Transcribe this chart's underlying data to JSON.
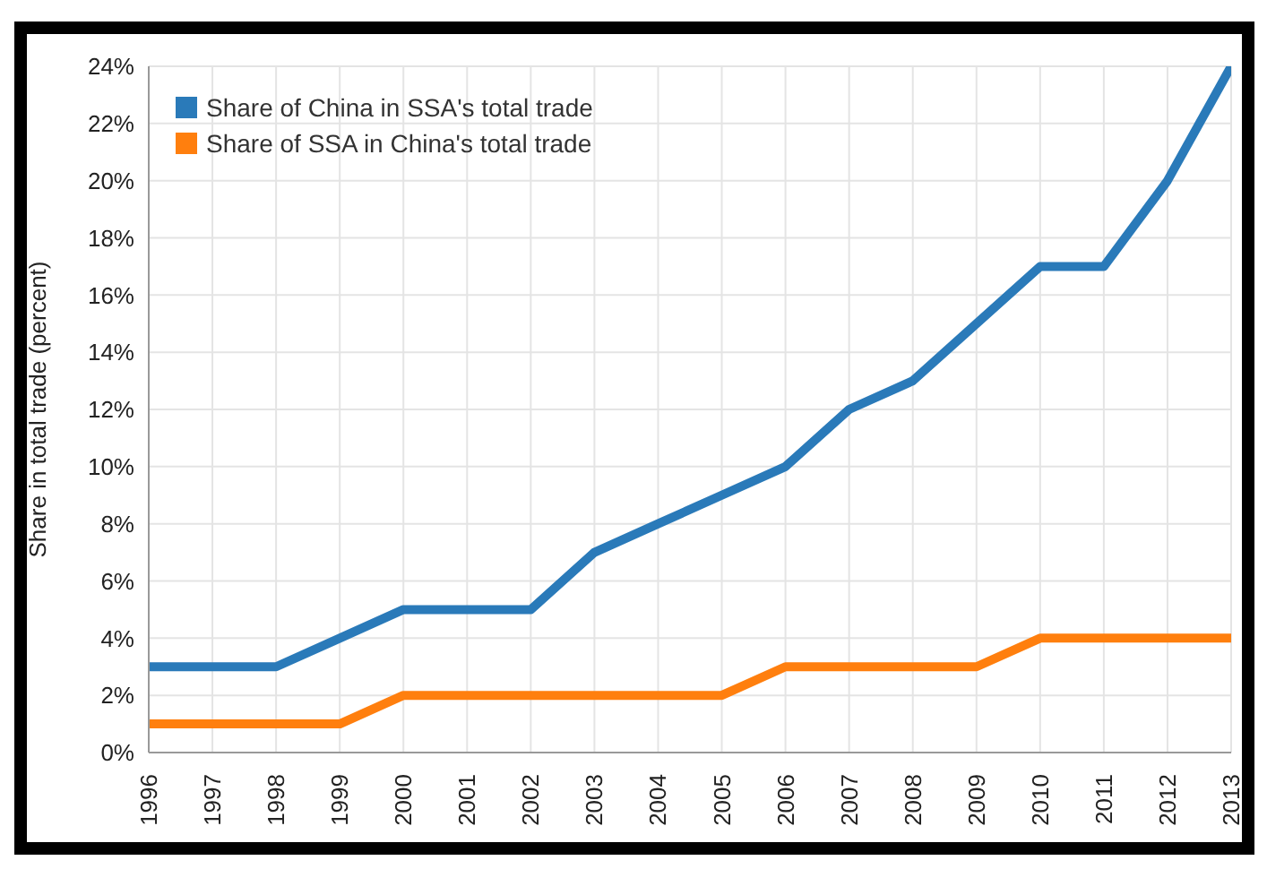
{
  "chart_data": {
    "type": "line",
    "ylabel": "Share in total trade (percent)",
    "x": [
      1996,
      1997,
      1998,
      1999,
      2000,
      2001,
      2002,
      2003,
      2004,
      2005,
      2006,
      2007,
      2008,
      2009,
      2010,
      2011,
      2012,
      2013
    ],
    "series": [
      {
        "name": "Share of China in SSA's total trade",
        "color": "#2a7ab9",
        "values": [
          3,
          3,
          3,
          4,
          5,
          5,
          5,
          7,
          8,
          9,
          10,
          12,
          13,
          15,
          17,
          17,
          20,
          24
        ]
      },
      {
        "name": "Share of SSA in China's total trade",
        "color": "#ff7f0e",
        "values": [
          1,
          1,
          1,
          1,
          2,
          2,
          2,
          2,
          2,
          2,
          3,
          3,
          3,
          3,
          4,
          4,
          4,
          4
        ]
      }
    ],
    "xlim": [
      1996,
      2013
    ],
    "xticks": [
      1996,
      1997,
      1998,
      1999,
      2000,
      2001,
      2002,
      2003,
      2004,
      2005,
      2006,
      2007,
      2008,
      2009,
      2010,
      2011,
      2012,
      2013
    ],
    "ylim": [
      0,
      24
    ],
    "yticks": [
      {
        "value": 0,
        "label": "0%"
      },
      {
        "value": 2,
        "label": "2%"
      },
      {
        "value": 4,
        "label": "4%"
      },
      {
        "value": 6,
        "label": "6%"
      },
      {
        "value": 8,
        "label": "8%"
      },
      {
        "value": 10,
        "label": "10%"
      },
      {
        "value": 12,
        "label": "12%"
      },
      {
        "value": 14,
        "label": "14%"
      },
      {
        "value": 16,
        "label": "16%"
      },
      {
        "value": 18,
        "label": "18%"
      },
      {
        "value": 20,
        "label": "20%"
      },
      {
        "value": 22,
        "label": "22%"
      },
      {
        "value": 24,
        "label": "24%"
      }
    ],
    "grid": true,
    "legend": "top left",
    "marker": "none",
    "line_style": "solid"
  }
}
